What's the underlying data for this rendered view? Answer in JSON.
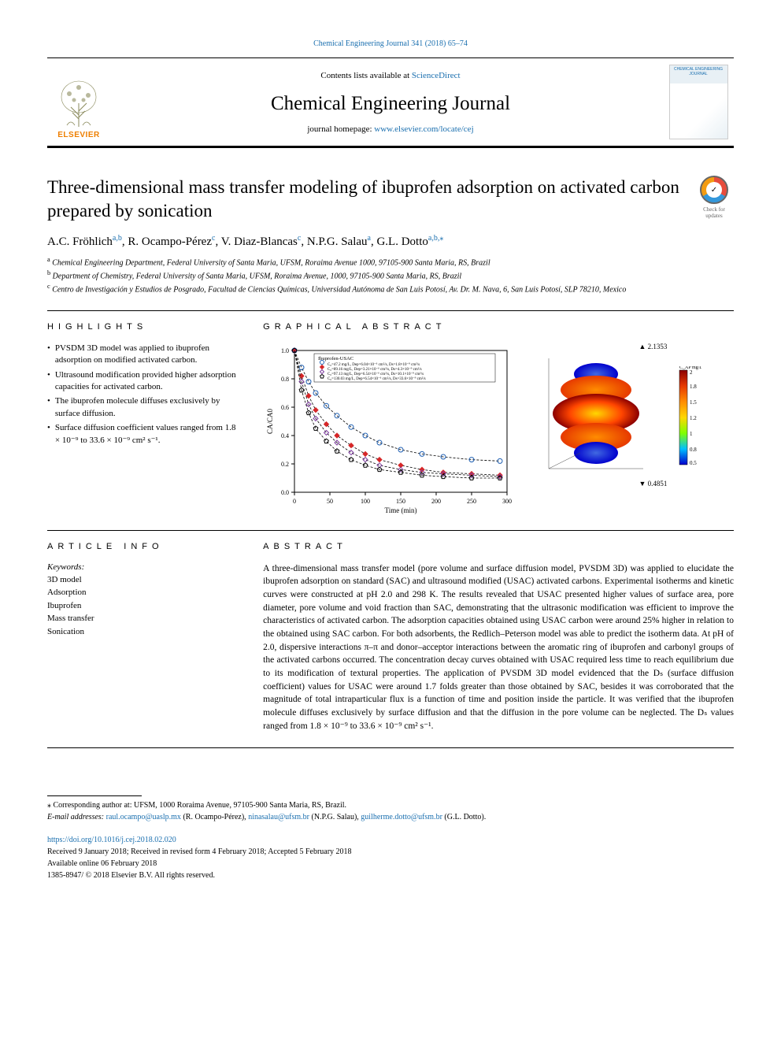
{
  "header": {
    "citation": "Chemical Engineering Journal 341 (2018) 65–74",
    "contents_pre": "Contents lists available at ",
    "contents_link": "ScienceDirect",
    "journal_name": "Chemical Engineering Journal",
    "homepage_pre": "journal homepage: ",
    "homepage_link": "www.elsevier.com/locate/cej",
    "elsevier_label": "ELSEVIER",
    "cover_text": "CHEMICAL ENGINEERING JOURNAL"
  },
  "check": {
    "label": "Check for updates",
    "glyph": "✓"
  },
  "title": "Three-dimensional mass transfer modeling of ibuprofen adsorption on activated carbon prepared by sonication",
  "authors_html": "A.C. Fröhlich<sup><a>a</a>,<a>b</a></sup>, R. Ocampo-Pérez<sup><a>c</a></sup>, V. Diaz-Blancas<sup><a>c</a></sup>, N.P.G. Salau<sup><a>a</a></sup>, G.L. Dotto<sup><a>a</a>,<a>b</a>,<a>⁎</a></sup>",
  "affiliations": [
    {
      "sup": "a",
      "text": "Chemical Engineering Department, Federal University of Santa Maria, UFSM, Roraima Avenue 1000, 97105-900 Santa Maria, RS, Brazil"
    },
    {
      "sup": "b",
      "text": "Department of Chemistry, Federal University of Santa Maria, UFSM, Roraima Avenue, 1000, 97105-900 Santa Maria, RS, Brazil"
    },
    {
      "sup": "c",
      "text": "Centro de Investigación y Estudios de Posgrado, Facultad de Ciencias Químicas, Universidad Autónoma de San Luis Potosí, Av. Dr. M. Nava, 6, San Luis Potosí, SLP 78210, Mexico"
    }
  ],
  "sections": {
    "highlights": "HIGHLIGHTS",
    "graphical": "GRAPHICAL ABSTRACT",
    "articleinfo": "ARTICLE INFO",
    "abstract": "ABSTRACT"
  },
  "highlights": [
    "PVSDM 3D model was applied to ibuprofen adsorption on modified activated carbon.",
    "Ultrasound modification provided higher adsorption capacities for activated carbon.",
    "The ibuprofen molecule diffuses exclusively by surface diffusion.",
    "Surface diffusion coefficient values ranged from 1.8 × 10⁻⁹ to 33.6 × 10⁻⁹ cm² s⁻¹."
  ],
  "chart": {
    "type": "scatter-line",
    "title": "Ibuprofen-USAC",
    "xlabel": "Time (min)",
    "ylabel": "CA/CA0",
    "xlim": [
      0,
      300
    ],
    "xtick_step": 50,
    "ylim": [
      0,
      1.0
    ],
    "ytick_step": 0.2,
    "xticks": [
      0,
      50,
      100,
      150,
      200,
      250,
      300
    ],
    "yticks": [
      "0.0",
      "0.2",
      "0.4",
      "0.6",
      "0.8",
      "1.0"
    ],
    "legend": [
      "C₀=47.2 mg/L, Dep=6.04×10⁻⁶ cm²/s, Ds=1.8×10⁻⁹ cm²/s",
      "C₀=89.16 mg/L, Dep=3.21×10⁻⁶ cm²/s, Ds=4.3×10⁻⁹ cm²/s",
      "C₀=97.13 mg/L, Dep=6.54×10⁻⁶ cm²/s, Ds=10.1×10⁻⁹ cm²/s",
      "C₀=130.03 mg/L, Dep=6.54×10⁻⁶ cm²/s, Ds=33.6×10⁻⁹ cm²/s"
    ],
    "series": [
      {
        "marker": "circle",
        "color": "#1e5fb3",
        "fill": "none",
        "x": [
          0,
          10,
          20,
          30,
          45,
          60,
          80,
          100,
          120,
          150,
          180,
          210,
          250,
          290
        ],
        "y": [
          1.0,
          0.88,
          0.78,
          0.7,
          0.61,
          0.54,
          0.46,
          0.4,
          0.35,
          0.3,
          0.27,
          0.25,
          0.23,
          0.22
        ]
      },
      {
        "marker": "diamond",
        "color": "#d62728",
        "fill": "#d62728",
        "x": [
          0,
          10,
          20,
          30,
          45,
          60,
          80,
          100,
          120,
          150,
          180,
          210,
          250,
          290
        ],
        "y": [
          1.0,
          0.82,
          0.68,
          0.58,
          0.48,
          0.4,
          0.33,
          0.27,
          0.23,
          0.19,
          0.16,
          0.14,
          0.13,
          0.12
        ]
      },
      {
        "marker": "diamond",
        "color": "#7f3fa0",
        "fill": "none",
        "x": [
          0,
          10,
          20,
          30,
          45,
          60,
          80,
          100,
          120,
          150,
          180,
          210,
          250,
          290
        ],
        "y": [
          1.0,
          0.78,
          0.62,
          0.52,
          0.42,
          0.35,
          0.28,
          0.23,
          0.19,
          0.16,
          0.14,
          0.13,
          0.12,
          0.11
        ]
      },
      {
        "marker": "pentagon",
        "color": "#000000",
        "fill": "none",
        "x": [
          0,
          10,
          20,
          30,
          45,
          60,
          80,
          100,
          120,
          150,
          180,
          210,
          250,
          290
        ],
        "y": [
          1.0,
          0.72,
          0.56,
          0.45,
          0.36,
          0.29,
          0.23,
          0.19,
          0.16,
          0.14,
          0.12,
          0.11,
          0.1,
          0.1
        ]
      }
    ],
    "line_color": "#000",
    "background_color": "#ffffff",
    "axis_color": "#000",
    "font_size": 8
  },
  "volume": {
    "max_label": "▲ 2.1353",
    "min_label": "▼ 0.4851",
    "units": "C_AP mg/L",
    "colorbar": {
      "max": "2",
      "mid": [
        "1.8",
        "1.5",
        "1.2",
        "1",
        "0.8"
      ],
      "min": "0.5",
      "colors": [
        "#8b0000",
        "#e63900",
        "#ff8c00",
        "#ffd700",
        "#7fff00",
        "#00bfff",
        "#0000cd"
      ]
    },
    "sphere_colors": [
      "#0000cd",
      "#ff8c00",
      "#8b0000",
      "#ff8c00",
      "#0000cd"
    ]
  },
  "article_info": {
    "kw_head": "Keywords:",
    "keywords": [
      "3D model",
      "Adsorption",
      "Ibuprofen",
      "Mass transfer",
      "Sonication"
    ]
  },
  "abstract": "A three-dimensional mass transfer model (pore volume and surface diffusion model, PVSDM 3D) was applied to elucidate the ibuprofen adsorption on standard (SAC) and ultrasound modified (USAC) activated carbons. Experimental isotherms and kinetic curves were constructed at pH 2.0 and 298 K. The results revealed that USAC presented higher values of surface area, pore diameter, pore volume and void fraction than SAC, demonstrating that the ultrasonic modification was efficient to improve the characteristics of activated carbon. The adsorption capacities obtained using USAC carbon were around 25% higher in relation to the obtained using SAC carbon. For both adsorbents, the Redlich–Peterson model was able to predict the isotherm data. At pH of 2.0, dispersive interactions π–π and donor–acceptor interactions between the aromatic ring of ibuprofen and carbonyl groups of the activated carbons occurred. The concentration decay curves obtained with USAC required less time to reach equilibrium due to its modification of textural properties. The application of PVSDM 3D model evidenced that the Dₛ (surface diffusion coefficient) values for USAC were around 1.7 folds greater than those obtained by SAC, besides it was corroborated that the magnitude of total intraparticular flux is a function of time and position inside the particle. It was verified that the ibuprofen molecule diffuses exclusively by surface diffusion and that the diffusion in the pore volume can be neglected. The Dₛ values ranged from 1.8 × 10⁻⁹ to 33.6 × 10⁻⁹ cm² s⁻¹.",
  "footnotes": {
    "corr": "⁎ Corresponding author at: UFSM, 1000 Roraima Avenue, 97105-900 Santa Maria, RS, Brazil.",
    "emails_pre": "E-mail addresses: ",
    "emails": [
      {
        "addr": "raul.ocampo@uaslp.mx",
        "who": " (R. Ocampo-Pérez), "
      },
      {
        "addr": "ninasalau@ufsm.br",
        "who": " (N.P.G. Salau), "
      },
      {
        "addr": "guilherme.dotto@ufsm.br",
        "who": " (G.L. Dotto)."
      }
    ]
  },
  "pub": {
    "doi": "https://doi.org/10.1016/j.cej.2018.02.020",
    "received": "Received 9 January 2018; Received in revised form 4 February 2018; Accepted 5 February 2018",
    "available": "Available online 06 February 2018",
    "copyright": "1385-8947/ © 2018 Elsevier B.V. All rights reserved."
  }
}
